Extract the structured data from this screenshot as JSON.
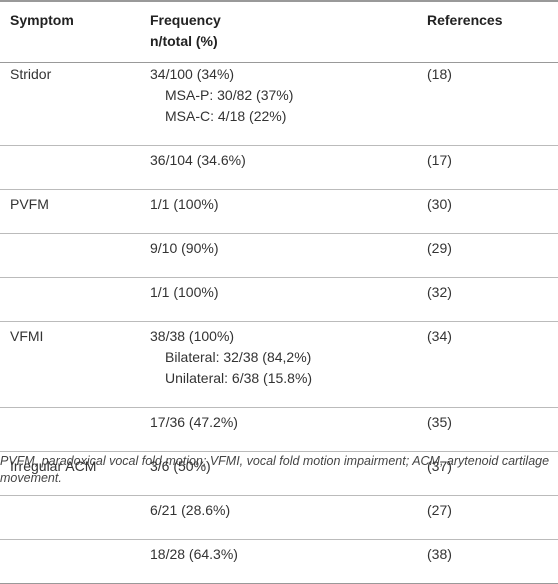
{
  "table": {
    "header": [
      "Symptom",
      "Frequency\nn/total (%)",
      "References"
    ],
    "rows": [
      {
        "symptom": "Stridor",
        "entries": [
          {
            "frequency": "34/100 (34%)",
            "details": [
              "MSA-P: 30/82 (37%)",
              "MSA-C: 4/18 (22%)"
            ],
            "reference": "(18)"
          },
          {
            "frequency": "36/104 (34.6%)",
            "reference": "(17)"
          }
        ]
      },
      {
        "symptom": "PVFM",
        "entries": [
          {
            "frequency": "1/1 (100%)",
            "reference": "(30)"
          },
          {
            "frequency": "9/10 (90%)",
            "reference": "(29)"
          },
          {
            "frequency": "1/1 (100%)",
            "reference": "(32)"
          }
        ]
      },
      {
        "symptom": "VFMI",
        "entries": [
          {
            "frequency": "38/38 (100%)",
            "details": [
              "Bilateral: 32/38 (84,2%)",
              "Unilateral: 6/38 (15.8%)"
            ],
            "reference": "(34)"
          },
          {
            "frequency": "17/36 (47.2%)",
            "reference": "(35)"
          }
        ]
      },
      {
        "symptom": "Irregular ACM",
        "entries": [
          {
            "frequency": "3/6 (50%)",
            "reference": "(37)"
          },
          {
            "frequency": "6/21 (28.6%)",
            "reference": "(27)"
          },
          {
            "frequency": "18/28 (64.3%)",
            "reference": "(38)"
          }
        ]
      }
    ],
    "footnote": "PVFM, paradoxical vocal fold motion; VFMI, vocal fold motion impairment; ACM, arytenoid cartilage movement."
  }
}
